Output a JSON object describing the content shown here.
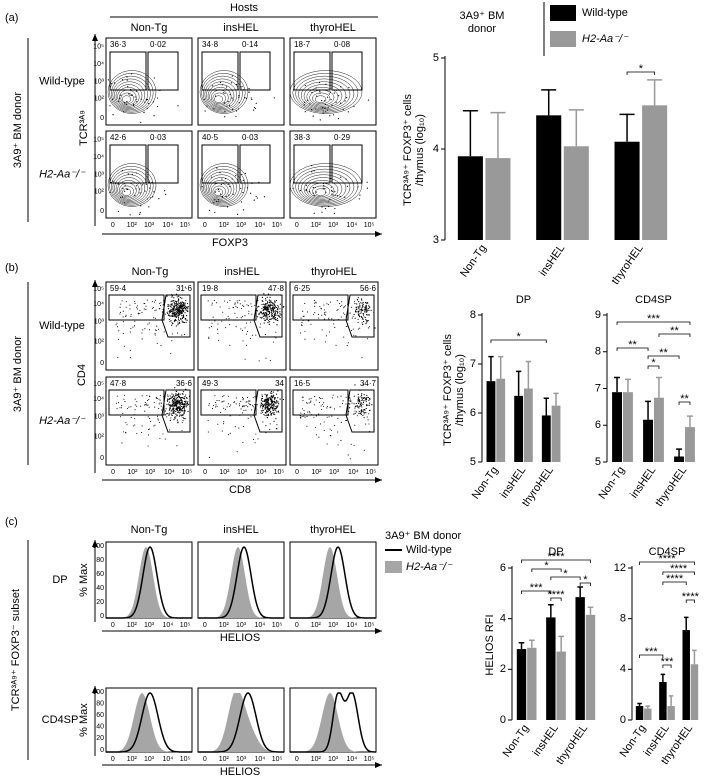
{
  "panel_labels": [
    "(a)",
    "(b)",
    "(c)"
  ],
  "flow_a": {
    "title": "Hosts",
    "columns": [
      "Non-Tg",
      "insHEL",
      "thyroHEL"
    ],
    "donor": "3A9⁺ BM donor",
    "rows": [
      "Wild-type",
      "H2-Aa⁻/⁻"
    ],
    "y_label": "TCR³ᴬ⁹",
    "x_label": "FOXP3",
    "x_ticks": [
      "0",
      "10²",
      "10³",
      "10⁴",
      "10⁵"
    ],
    "y_ticks": [
      "10⁵",
      "10⁴",
      "10³",
      "10²",
      "0"
    ],
    "gates": [
      [
        [
          "36·3",
          "0·02"
        ],
        [
          "34·8",
          "0·14"
        ],
        [
          "18·7",
          "0·08"
        ]
      ],
      [
        [
          "42·6",
          "0·03"
        ],
        [
          "40·5",
          "0·03"
        ],
        [
          "38·3",
          "0·29"
        ]
      ]
    ]
  },
  "flow_b": {
    "columns": [
      "Non-Tg",
      "insHEL",
      "thyroHEL"
    ],
    "donor": "3A9⁺ BM donor",
    "rows": [
      "Wild-type",
      "H2-Aa⁻/⁻"
    ],
    "y_label": "CD4",
    "x_label": "CD8",
    "x_ticks": [
      "0",
      "10²",
      "10³",
      "10⁴",
      "10⁵"
    ],
    "y_ticks": [
      "10⁵",
      "10⁴",
      "10³",
      "10²",
      "0"
    ],
    "gates": [
      [
        [
          "59·4",
          "31·6"
        ],
        [
          "19·8",
          "47·8"
        ],
        [
          "6·25",
          "56·6"
        ]
      ],
      [
        [
          "47·8",
          "36·6"
        ],
        [
          "49·3",
          "34"
        ],
        [
          "16·5",
          "34·7"
        ]
      ]
    ]
  },
  "flow_c": {
    "columns": [
      "Non-Tg",
      "insHEL",
      "thyroHEL"
    ],
    "subset": "TCR³ᴬ⁹⁺ FOXP3⁻ subset",
    "rows": [
      "DP",
      "CD4SP"
    ],
    "y_label": "% Max",
    "x_label": "HELIOS",
    "x_ticks": [
      "0",
      "10²",
      "10³",
      "10⁴",
      "10⁵"
    ],
    "y_ticks": [
      "100",
      "80",
      "60",
      "40",
      "20",
      "0"
    ],
    "legend_title": "3A9⁺ BM donor",
    "legend": [
      "Wild-type",
      "H2-Aa⁻/⁻"
    ]
  },
  "chart_data": [
    {
      "type": "bar",
      "y_label": [
        "TCR³ᴬ⁹⁺ FOXP3⁺ cells",
        "/thymus (log₁₀)"
      ],
      "legend_title": [
        "3A9⁺ BM",
        "donor"
      ],
      "categories": [
        "Non-Tg",
        "insHEL",
        "thyroHEL"
      ],
      "series": [
        {
          "name": "Wild-type",
          "color": "#000000",
          "values": [
            3.92,
            4.37,
            4.08
          ],
          "errors": [
            0.5,
            0.28,
            0.3
          ]
        },
        {
          "name": "H2-Aa⁻/⁻",
          "color": "#999999",
          "values": [
            3.9,
            4.03,
            4.48
          ],
          "errors": [
            0.5,
            0.4,
            0.28
          ]
        }
      ],
      "ylim": [
        3,
        5
      ],
      "yticks": [
        3,
        4,
        5
      ],
      "annotations": [
        "*"
      ]
    },
    {
      "type": "bar",
      "title": "DP",
      "y_label": [
        "TCR³ᴬ⁹⁺ FOXP3⁺ cells",
        "/thymus (log₁₀)"
      ],
      "categories": [
        "Non-Tg",
        "insHEL",
        "thyroHEL"
      ],
      "series": [
        {
          "color": "#000000",
          "values": [
            6.65,
            6.35,
            5.95
          ],
          "errors": [
            0.5,
            0.5,
            0.35
          ]
        },
        {
          "color": "#999999",
          "values": [
            6.7,
            6.5,
            6.15
          ],
          "errors": [
            0.45,
            0.55,
            0.25
          ]
        }
      ],
      "ylim": [
        5,
        8
      ],
      "yticks": [
        5,
        6,
        7,
        8
      ],
      "annotations": [
        "*"
      ]
    },
    {
      "type": "bar",
      "title": "CD4SP",
      "categories": [
        "Non-Tg",
        "insHEL",
        "thyroHEL"
      ],
      "series": [
        {
          "color": "#000000",
          "values": [
            6.9,
            6.15,
            5.15
          ],
          "errors": [
            0.4,
            0.5,
            0.2
          ]
        },
        {
          "color": "#999999",
          "values": [
            6.9,
            6.75,
            5.95
          ],
          "errors": [
            0.35,
            0.55,
            0.3
          ]
        }
      ],
      "ylim": [
        5,
        9
      ],
      "yticks": [
        5,
        6,
        7,
        8,
        9
      ],
      "annotations": [
        "***",
        "**",
        "**",
        "**",
        "*",
        "**"
      ]
    },
    {
      "type": "bar",
      "title": "DP",
      "y_label": [
        "HELIOS RFI"
      ],
      "categories": [
        "Non-Tg",
        "insHEL",
        "thyroHEL"
      ],
      "series": [
        {
          "color": "#000000",
          "values": [
            2.8,
            4.05,
            4.85
          ],
          "errors": [
            0.25,
            0.5,
            0.4
          ]
        },
        {
          "color": "#999999",
          "values": [
            2.85,
            2.7,
            4.15
          ],
          "errors": [
            0.3,
            0.6,
            0.3
          ]
        }
      ],
      "ylim": [
        0,
        6
      ],
      "yticks": [
        0,
        2,
        4,
        6
      ],
      "annotations": [
        "****",
        "*",
        "*",
        "***",
        "****",
        "*"
      ]
    },
    {
      "type": "bar",
      "title": "CD4SP",
      "categories": [
        "Non-Tg",
        "insHEL",
        "thyroHEL"
      ],
      "series": [
        {
          "color": "#000000",
          "values": [
            1.1,
            3.0,
            7.1
          ],
          "errors": [
            0.2,
            0.6,
            1.0
          ]
        },
        {
          "color": "#999999",
          "values": [
            0.9,
            1.1,
            4.4
          ],
          "errors": [
            0.2,
            0.8,
            1.1
          ]
        }
      ],
      "ylim": [
        0,
        12
      ],
      "yticks": [
        0,
        4,
        8,
        12
      ],
      "annotations": [
        "****",
        "****",
        "****",
        "***",
        "***",
        "****"
      ]
    }
  ]
}
